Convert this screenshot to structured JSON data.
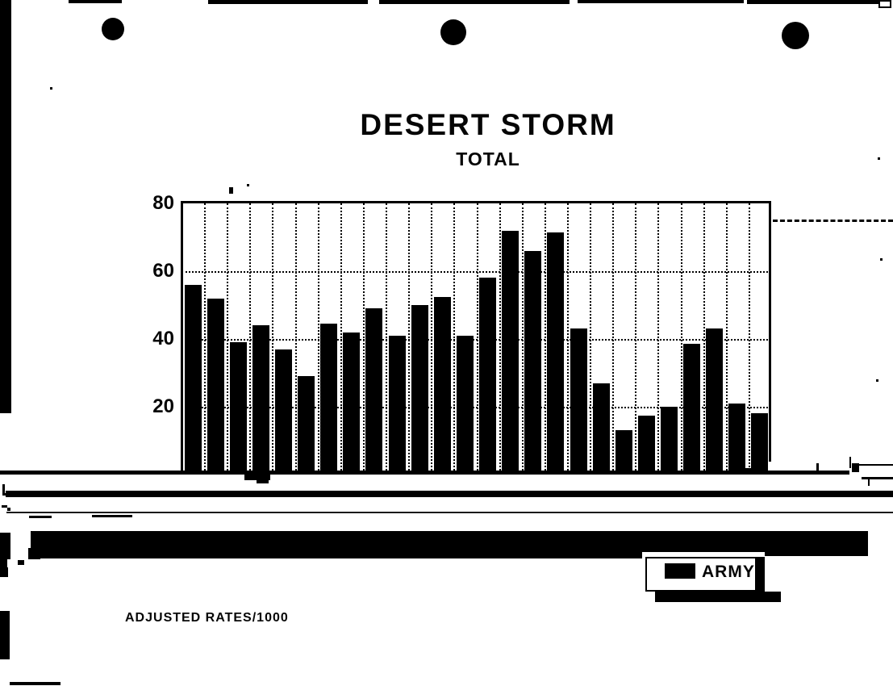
{
  "document": {
    "title": "DESERT STORM",
    "subtitle": "TOTAL",
    "footnote": "ADJUSTED RATES/1000"
  },
  "legend": {
    "label": "ARMY",
    "swatch_color": "#000000"
  },
  "colors": {
    "ink": "#000000",
    "paper": "#ffffff"
  },
  "chart_data": {
    "type": "bar",
    "title": "DESERT STORM",
    "subtitle": "TOTAL",
    "footnote": "ADJUSTED RATES/1000",
    "xlabel": "",
    "ylabel": "",
    "ylim": [
      0,
      80
    ],
    "yticks": [
      20,
      40,
      60,
      80
    ],
    "grid": true,
    "bar_color": "#000000",
    "legend": [
      {
        "name": "ARMY",
        "color": "#000000"
      }
    ],
    "legend_position": "bottom-right",
    "x_tick_labels_visible": false,
    "values": [
      56,
      52,
      39,
      44,
      37,
      29,
      44.5,
      42,
      49,
      41,
      50,
      52.5,
      41,
      58,
      72,
      66,
      71.5,
      43,
      27,
      13,
      17.5,
      20,
      38.5,
      43,
      21,
      18
    ]
  }
}
